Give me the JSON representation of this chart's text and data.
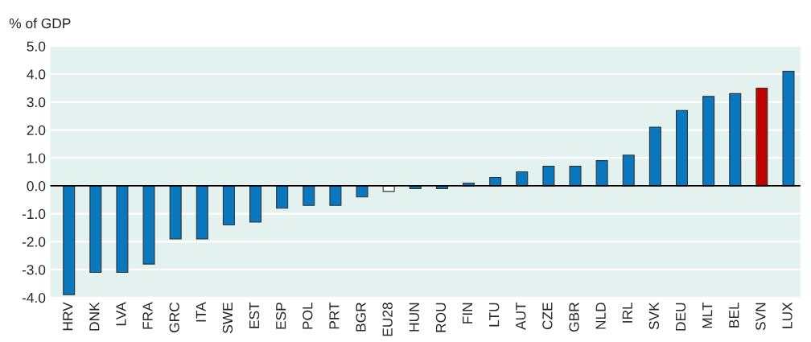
{
  "chart_data": {
    "type": "bar",
    "ylabel": "% of GDP",
    "categories": [
      "HRV",
      "DNK",
      "LVA",
      "FRA",
      "GRC",
      "ITA",
      "SWE",
      "EST",
      "ESP",
      "POL",
      "PRT",
      "BGR",
      "EU28",
      "HUN",
      "ROU",
      "FIN",
      "LTU",
      "AUT",
      "CZE",
      "GBR",
      "NLD",
      "IRL",
      "SVK",
      "DEU",
      "MLT",
      "BEL",
      "SVN",
      "LUX"
    ],
    "values": [
      -3.9,
      -3.1,
      -3.1,
      -2.8,
      -1.9,
      -1.9,
      -1.4,
      -1.3,
      -0.8,
      -0.7,
      -0.7,
      -0.4,
      -0.2,
      -0.1,
      -0.1,
      0.1,
      0.3,
      0.5,
      0.7,
      0.7,
      0.9,
      1.1,
      2.1,
      2.7,
      3.2,
      3.3,
      3.5,
      4.1
    ],
    "colors": [
      "#0a78be",
      "#0a78be",
      "#0a78be",
      "#0a78be",
      "#0a78be",
      "#0a78be",
      "#0a78be",
      "#0a78be",
      "#0a78be",
      "#0a78be",
      "#0a78be",
      "#0a78be",
      "#ffffff",
      "#0a78be",
      "#0a78be",
      "#0a78be",
      "#0a78be",
      "#0a78be",
      "#0a78be",
      "#0a78be",
      "#0a78be",
      "#0a78be",
      "#0a78be",
      "#0a78be",
      "#0a78be",
      "#0a78be",
      "#c00000",
      "#0a78be"
    ],
    "ylim": [
      -4.0,
      5.0
    ],
    "yticks": [
      {
        "value": -4.0,
        "label": "-4.0"
      },
      {
        "value": -3.0,
        "label": "-3.0"
      },
      {
        "value": -2.0,
        "label": "-2.0"
      },
      {
        "value": -1.0,
        "label": "-1.0"
      },
      {
        "value": 0.0,
        "label": "0.0"
      },
      {
        "value": 1.0,
        "label": "1.0"
      },
      {
        "value": 2.0,
        "label": "2.0"
      },
      {
        "value": 3.0,
        "label": "3.0"
      },
      {
        "value": 4.0,
        "label": "4.0"
      },
      {
        "value": 5.0,
        "label": "5.0"
      }
    ],
    "grid": "y",
    "legend": false
  }
}
